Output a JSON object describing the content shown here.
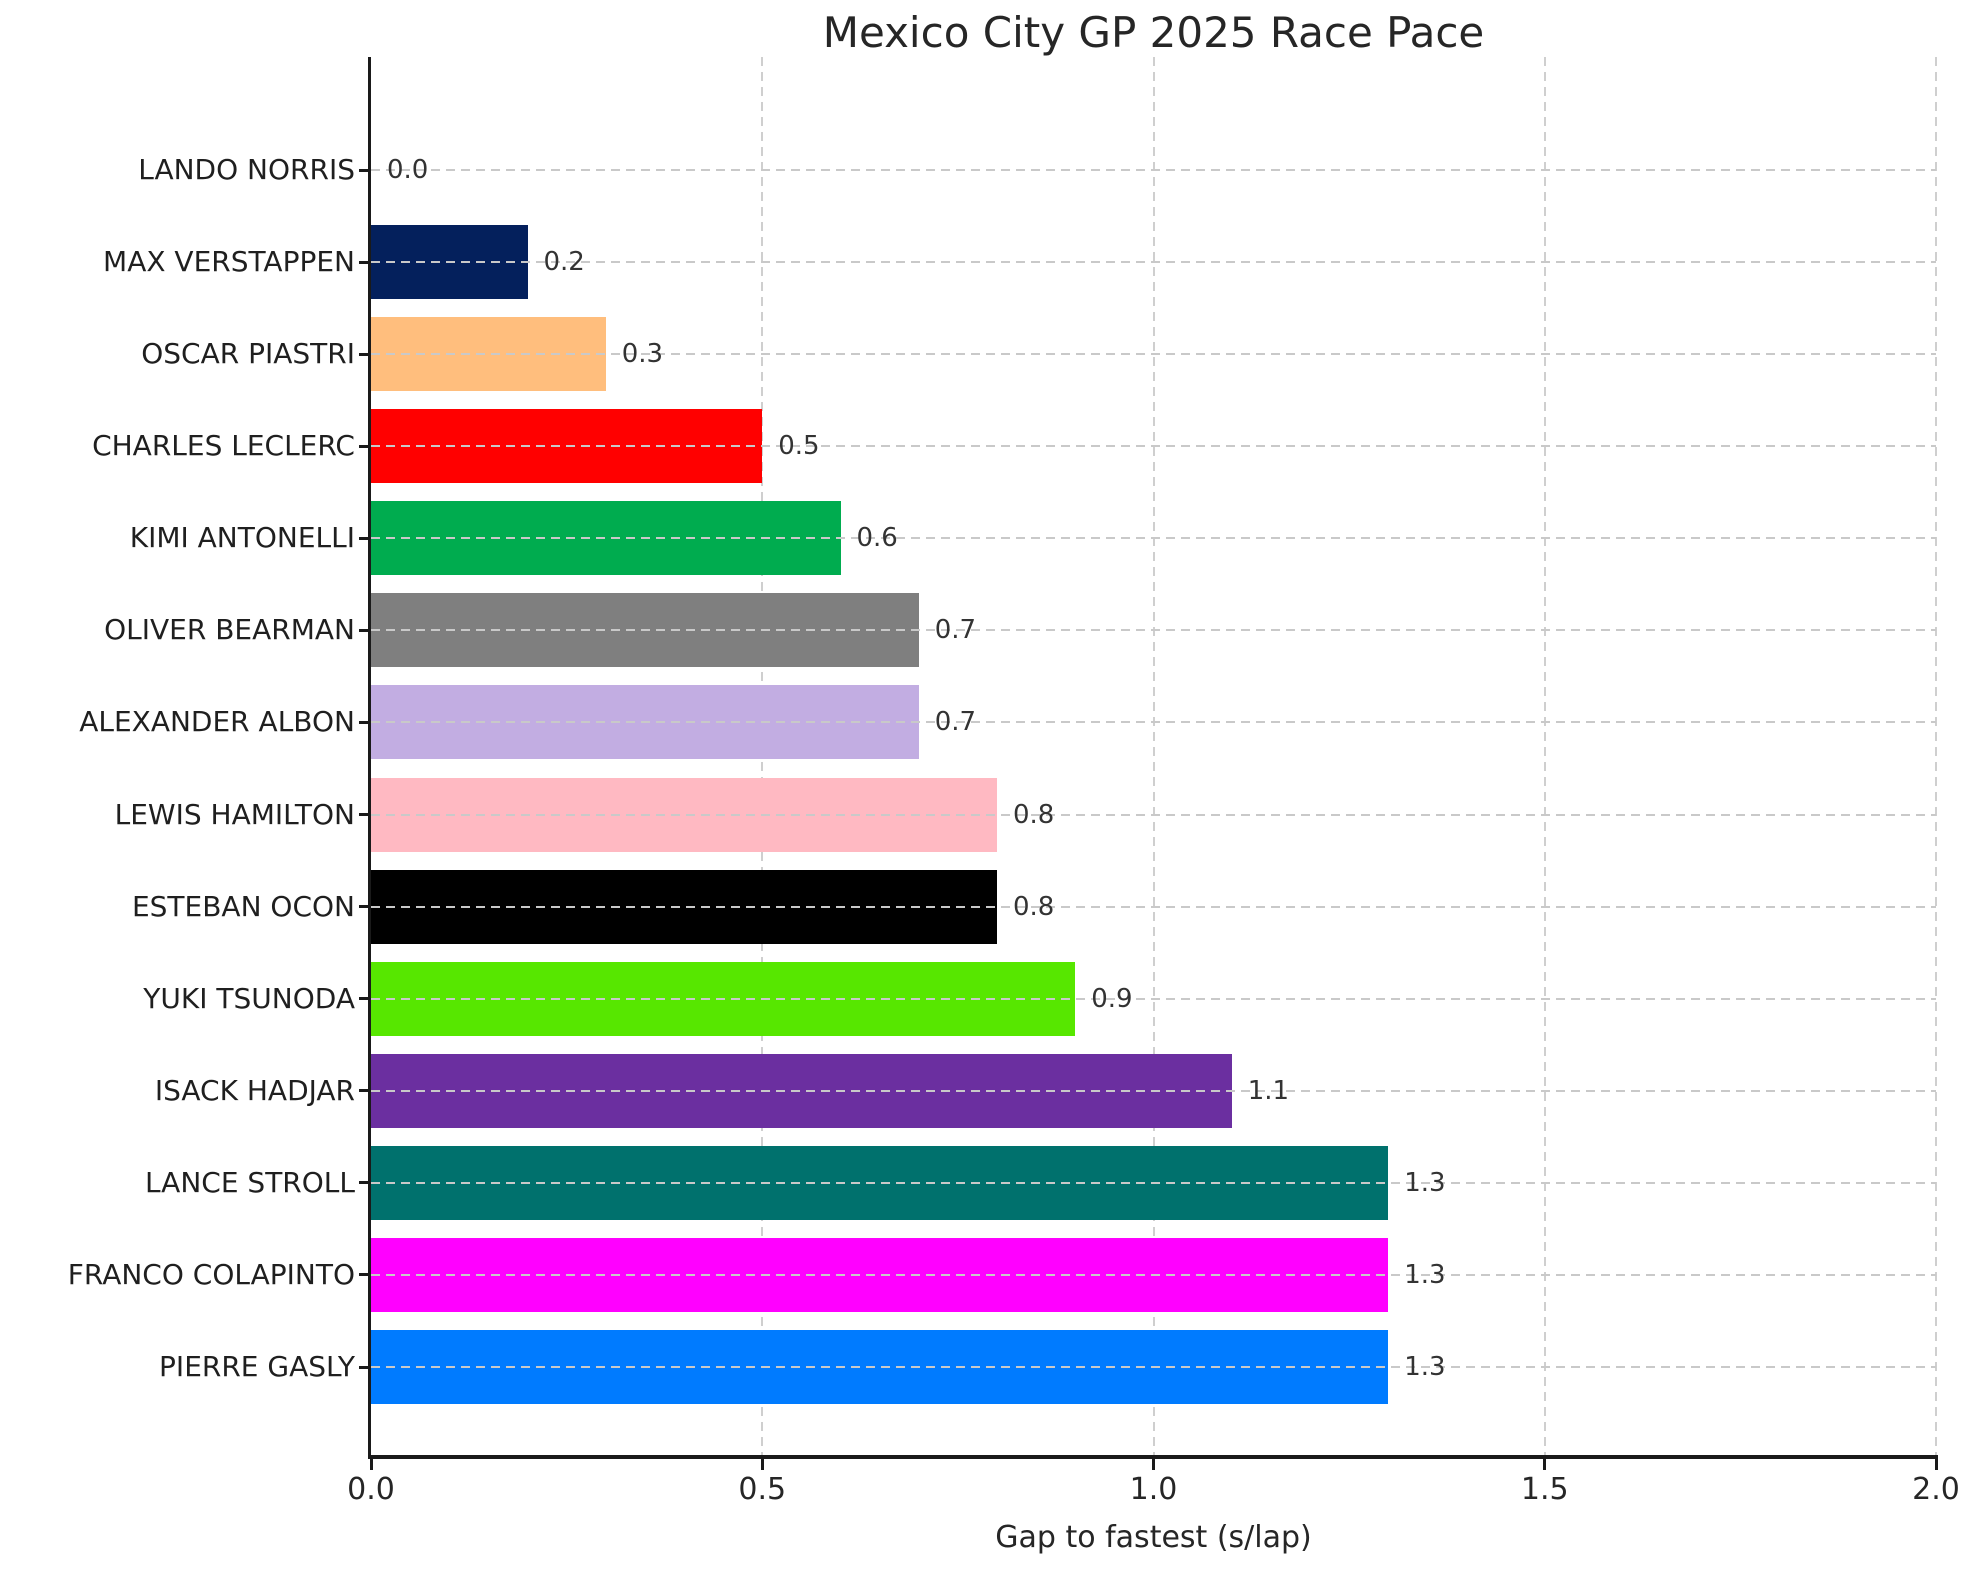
{
  "chart_data": {
    "type": "bar",
    "orientation": "horizontal",
    "title": "Mexico City GP 2025 Race Pace",
    "xlabel": "Gap to fastest (s/lap)",
    "xlim": [
      0,
      2
    ],
    "xticks": [
      0.0,
      0.5,
      1.0,
      1.5,
      2.0
    ],
    "xtick_labels": [
      "0.0",
      "0.5",
      "1.0",
      "1.5",
      "2.0"
    ],
    "grid": true,
    "grid_style": "dashed",
    "legend": false,
    "categories": [
      "LANDO NORRIS",
      "MAX VERSTAPPEN",
      "OSCAR PIASTRI",
      "CHARLES LECLERC",
      "KIMI ANTONELLI",
      "OLIVER BEARMAN",
      "ALEXANDER ALBON",
      "LEWIS HAMILTON",
      "ESTEBAN OCON",
      "YUKI TSUNODA",
      "ISACK HADJAR",
      "LANCE STROLL",
      "FRANCO COLAPINTO",
      "PIERRE GASLY"
    ],
    "values": [
      0.0,
      0.2,
      0.3,
      0.5,
      0.6,
      0.7,
      0.7,
      0.8,
      0.8,
      0.9,
      1.1,
      1.3,
      1.3,
      1.3
    ],
    "value_labels": [
      "0.0",
      "0.2",
      "0.3",
      "0.5",
      "0.6",
      "0.7",
      "0.7",
      "0.8",
      "0.8",
      "0.9",
      "1.1",
      "1.3",
      "1.3",
      "1.3"
    ],
    "bar_colors": [
      null,
      "#04205c",
      "#ffbe7d",
      "#ff0000",
      "#00ac4f",
      "#7f7f7f",
      "#c2ade2",
      "#ffb9c2",
      "#000000",
      "#57e700",
      "#6b2fa0",
      "#00716d",
      "#ff00ff",
      "#007bff"
    ],
    "colors": {
      "axis": "#1a1a1a",
      "text": "#262626",
      "grid": "#c9c9c9",
      "background": "#ffffff"
    }
  }
}
